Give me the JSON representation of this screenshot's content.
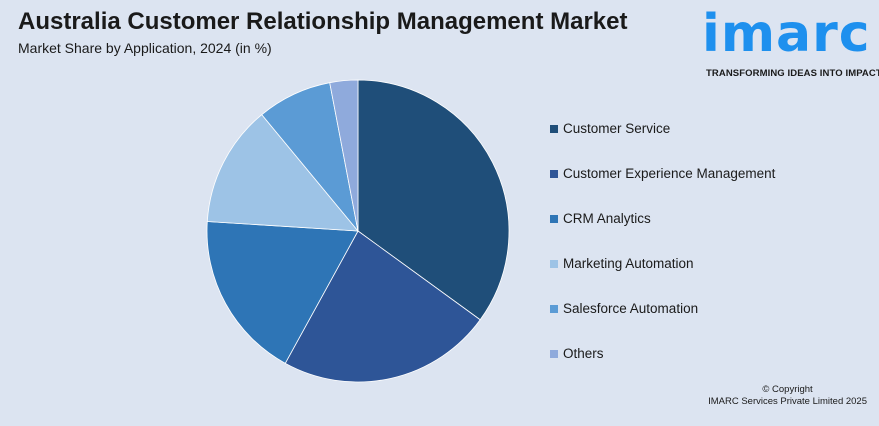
{
  "header": {
    "title": "Australia Customer Relationship Management Market",
    "subtitle": "Market Share by Application, 2024 (in %)"
  },
  "logo": {
    "word": "imarc",
    "tagline": "TRANSFORMING IDEAS INTO IMPACT"
  },
  "chart_data": {
    "type": "pie",
    "categories": [
      "Customer Service",
      "Customer Experience Management",
      "CRM Analytics",
      "Marketing Automation",
      "Salesforce Automation",
      "Others"
    ],
    "values": [
      35,
      23,
      18,
      13,
      8,
      3
    ],
    "colors": [
      "#1f4e79",
      "#2e5597",
      "#2e75b6",
      "#9dc3e6",
      "#5b9bd5",
      "#8faadc"
    ],
    "legend_position": "right",
    "start_angle_deg": 0,
    "direction": "clockwise"
  },
  "footer": {
    "copyright_line1": "© Copyright",
    "copyright_line2": "IMARC Services Private Limited 2025"
  }
}
